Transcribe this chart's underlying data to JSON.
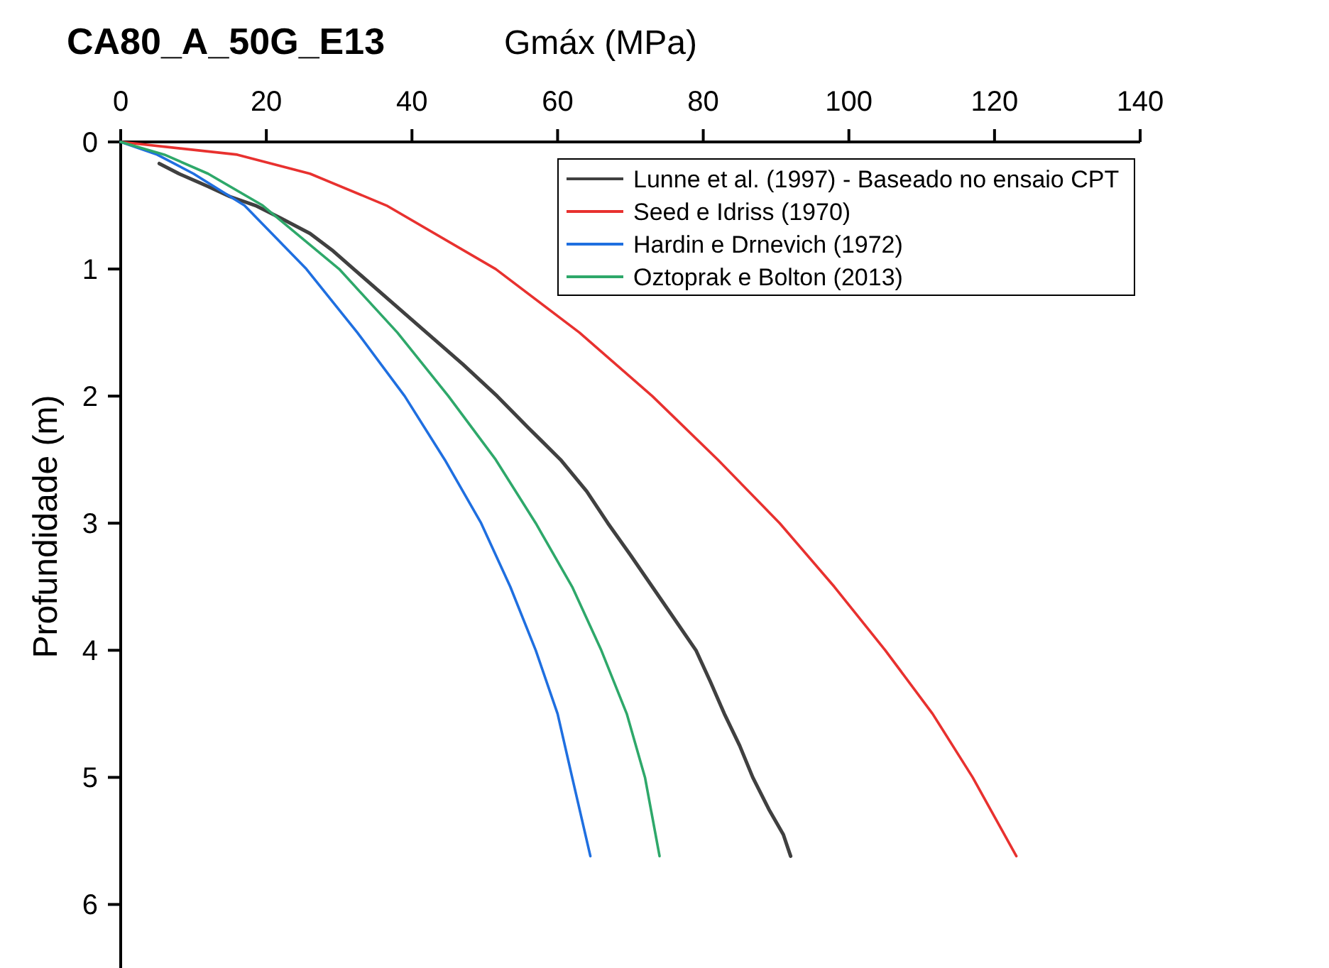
{
  "chart_data": {
    "type": "line",
    "title": "CA80_A_50G_E13",
    "xlabel": "Gmáx (MPa)",
    "ylabel": "Profundidade (m)",
    "xlim": [
      0,
      140
    ],
    "xticks": [
      0,
      20,
      40,
      60,
      80,
      100,
      120,
      140
    ],
    "ylim": [
      6.5,
      0
    ],
    "yticks": [
      0,
      1,
      2,
      3,
      4,
      5,
      6
    ],
    "grid": false,
    "legend": "top right",
    "marker": "none",
    "line_style": "solid",
    "series": [
      {
        "name": "Lunne et al. (1997) - Baseado no ensaio CPT",
        "color": "#404040",
        "x": [
          5.3,
          8,
          12,
          15,
          18.5,
          22,
          26,
          29,
          32,
          37,
          42,
          47,
          51.7,
          56,
          60.4,
          64,
          66.9,
          70,
          73,
          76,
          79,
          81,
          82.9,
          85,
          86.8,
          89,
          91,
          92
        ],
        "values": [
          0.17,
          0.25,
          0.35,
          0.43,
          0.5,
          0.6,
          0.72,
          0.85,
          1,
          1.25,
          1.5,
          1.75,
          2,
          2.25,
          2.5,
          2.75,
          3,
          3.25,
          3.5,
          3.75,
          4,
          4.25,
          4.5,
          4.75,
          5,
          5.25,
          5.45,
          5.62
        ]
      },
      {
        "name": "Seed e Idriss (1970)",
        "color": "#e8312f",
        "x": [
          0,
          16,
          26,
          36.5,
          51.5,
          63,
          73,
          82,
          90.5,
          98,
          105,
          111.5,
          117,
          123
        ],
        "values": [
          0,
          0.1,
          0.25,
          0.5,
          1,
          1.5,
          2,
          2.5,
          3,
          3.5,
          4,
          4.5,
          5,
          5.62
        ]
      },
      {
        "name": "Hardin e Drnevich (1972)",
        "color": "#1f6fe0",
        "x": [
          0,
          5,
          10,
          17,
          25.5,
          32.5,
          39,
          44.5,
          49.5,
          53.5,
          57,
          60,
          62,
          64.5
        ],
        "values": [
          0,
          0.1,
          0.25,
          0.5,
          1,
          1.5,
          2,
          2.5,
          3,
          3.5,
          4,
          4.5,
          5,
          5.62
        ]
      },
      {
        "name": "Oztoprak e Bolton (2013)",
        "color": "#2ea86a",
        "x": [
          0,
          6,
          12,
          19.5,
          30,
          38,
          45,
          51.5,
          57,
          62,
          66,
          69.5,
          72,
          74
        ],
        "values": [
          0,
          0.1,
          0.25,
          0.5,
          1,
          1.5,
          2,
          2.5,
          3,
          3.5,
          4,
          4.5,
          5,
          5.62
        ]
      }
    ]
  }
}
